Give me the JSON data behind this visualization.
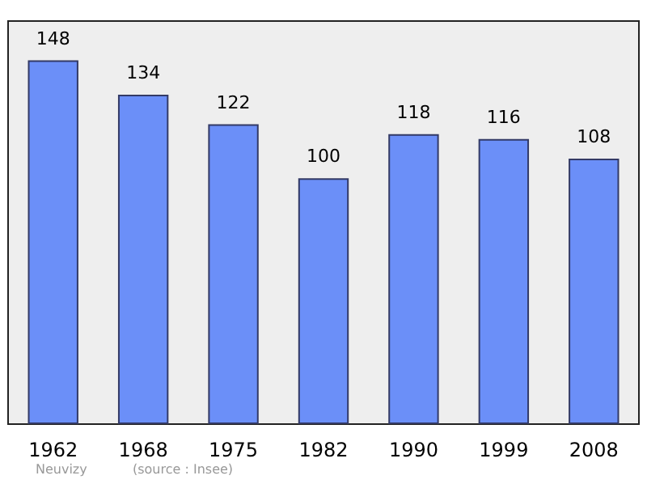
{
  "chart_data": {
    "type": "bar",
    "categories": [
      "1962",
      "1968",
      "1975",
      "1982",
      "1990",
      "1999",
      "2008"
    ],
    "values": [
      148,
      134,
      122,
      100,
      118,
      116,
      108
    ],
    "color": "#6b8ff8",
    "ylim": [
      0,
      164
    ],
    "data_labels": true,
    "grid": false,
    "annotations": [
      "Neuvizy",
      "(source : Insee)"
    ]
  }
}
